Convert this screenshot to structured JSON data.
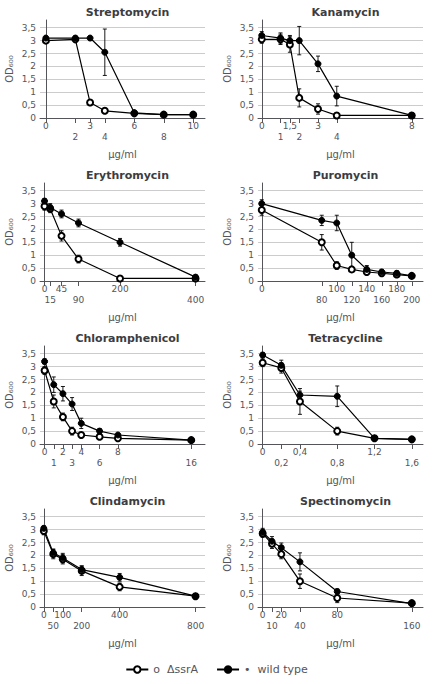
{
  "chart_data": [
    {
      "type": "line",
      "title": "Streptomycin",
      "xlabel": "μg/ml",
      "ylabel": "OD₆₀₀",
      "xlim": [
        -0.4,
        10.8
      ],
      "xticks": [
        0,
        2,
        3,
        4,
        6,
        8,
        10
      ],
      "ylim": [
        0,
        3.8
      ],
      "yticks": [
        0,
        {
          "value": 0.5,
          "label": "0,5"
        },
        1,
        {
          "value": 1.5,
          "label": "1,5"
        },
        2,
        {
          "value": 2.5,
          "label": "2,5"
        },
        3,
        {
          "value": 3.5,
          "label": "3,5"
        }
      ],
      "grid": "y",
      "legend": "bottom",
      "series": [
        {
          "name": "o  ΔssrA",
          "color": "#000000",
          "marker": "open_circle",
          "line_style": "solid",
          "x": [
            0,
            2,
            3,
            4,
            6,
            8,
            10
          ],
          "values": [
            3.0,
            3.05,
            0.6,
            0.28,
            0.18,
            0.13,
            0.13
          ],
          "errors": [
            0.08,
            0.08,
            0.1,
            0.05,
            0.04,
            0.03,
            0.03
          ]
        },
        {
          "name": "•  wild type",
          "color": "#000000",
          "marker": "circle",
          "line_style": "solid",
          "x": [
            0,
            2,
            3,
            4,
            6,
            8,
            10
          ],
          "values": [
            3.1,
            3.1,
            3.1,
            2.55,
            0.2,
            0.13,
            0.13
          ],
          "errors": [
            0.08,
            0.08,
            0.08,
            0.9,
            0.04,
            0.03,
            0.03
          ]
        }
      ]
    },
    {
      "type": "line",
      "title": "Kanamycin",
      "xlabel": "μg/ml",
      "ylabel": "OD₆₀₀",
      "xlim": [
        -0.2,
        8.6
      ],
      "xticks": [
        0,
        1,
        {
          "value": 1.5,
          "label": "1,5"
        },
        2,
        3,
        4,
        8
      ],
      "ylim": [
        0,
        3.8
      ],
      "yticks": [
        0,
        {
          "value": 0.5,
          "label": "0,5"
        },
        1,
        {
          "value": 1.5,
          "label": "1,5"
        },
        2,
        {
          "value": 2.5,
          "label": "2,5"
        },
        3,
        {
          "value": 3.5,
          "label": "3,5"
        }
      ],
      "grid": "y",
      "legend": "bottom",
      "series": [
        {
          "name": "o  ΔssrA",
          "color": "#000000",
          "marker": "open_circle",
          "line_style": "solid",
          "x": [
            0,
            1,
            1.5,
            2,
            3,
            4,
            8
          ],
          "values": [
            3.05,
            3.05,
            2.85,
            0.78,
            0.35,
            0.1,
            0.1
          ],
          "errors": [
            0.15,
            0.2,
            0.3,
            0.35,
            0.2,
            0.05,
            0.04
          ]
        },
        {
          "name": "•  wild type",
          "color": "#000000",
          "marker": "circle",
          "line_style": "solid",
          "x": [
            0,
            1,
            1.5,
            2,
            3,
            4,
            8
          ],
          "values": [
            3.2,
            3.1,
            3.0,
            3.0,
            2.1,
            0.85,
            0.1
          ],
          "errors": [
            0.15,
            0.2,
            0.2,
            0.55,
            0.3,
            0.38,
            0.04
          ]
        }
      ]
    },
    {
      "type": "line",
      "title": "Erythromycin",
      "xlabel": "μg/ml",
      "ylabel": "OD₆₀₀",
      "xlim": [
        -12,
        425
      ],
      "xticks": [
        0,
        15,
        45,
        90,
        200,
        400
      ],
      "ylim": [
        0,
        3.8
      ],
      "yticks": [
        0,
        {
          "value": 0.5,
          "label": "0,5"
        },
        1,
        {
          "value": 1.5,
          "label": "1,5"
        },
        2,
        {
          "value": 2.5,
          "label": "2,5"
        },
        3,
        {
          "value": 3.5,
          "label": "3,5"
        }
      ],
      "grid": "y",
      "legend": "bottom",
      "series": [
        {
          "name": "o  ΔssrA",
          "color": "#000000",
          "marker": "open_circle",
          "line_style": "solid",
          "x": [
            0,
            15,
            45,
            90,
            200,
            400
          ],
          "values": [
            2.9,
            2.8,
            1.75,
            0.85,
            0.1,
            0.1
          ],
          "errors": [
            0.15,
            0.15,
            0.2,
            0.15,
            0.05,
            0.04
          ]
        },
        {
          "name": "•  wild type",
          "color": "#000000",
          "marker": "circle",
          "line_style": "solid",
          "x": [
            0,
            15,
            45,
            90,
            200,
            400
          ],
          "values": [
            3.1,
            2.85,
            2.6,
            2.25,
            1.5,
            0.15
          ],
          "errors": [
            0.1,
            0.15,
            0.15,
            0.15,
            0.15,
            0.08
          ]
        }
      ]
    },
    {
      "type": "line",
      "title": "Puromycin",
      "xlabel": "μg/ml",
      "ylabel": "OD₆₀₀",
      "xlim": [
        -5,
        215
      ],
      "xticks": [
        0,
        80,
        100,
        120,
        140,
        160,
        180,
        200
      ],
      "ylim": [
        0,
        3.8
      ],
      "yticks": [
        0,
        {
          "value": 0.5,
          "label": "0,5"
        },
        1,
        {
          "value": 1.5,
          "label": "1,5"
        },
        2,
        {
          "value": 2.5,
          "label": "2,5"
        },
        3,
        {
          "value": 3.5,
          "label": "3,5"
        }
      ],
      "grid": "y",
      "legend": "bottom",
      "series": [
        {
          "name": "o  ΔssrA",
          "color": "#000000",
          "marker": "open_circle",
          "line_style": "solid",
          "x": [
            0,
            80,
            100,
            120,
            140,
            160,
            180,
            200
          ],
          "values": [
            2.75,
            1.5,
            0.6,
            0.45,
            0.35,
            0.3,
            0.25,
            0.2
          ],
          "errors": [
            0.2,
            0.3,
            0.15,
            0.1,
            0.1,
            0.1,
            0.07,
            0.07
          ]
        },
        {
          "name": "•  wild type",
          "color": "#000000",
          "marker": "circle",
          "line_style": "solid",
          "x": [
            0,
            80,
            100,
            120,
            140,
            160,
            180,
            200
          ],
          "values": [
            3.0,
            2.35,
            2.25,
            1.0,
            0.45,
            0.35,
            0.3,
            0.2
          ],
          "errors": [
            0.15,
            0.2,
            0.3,
            0.5,
            0.15,
            0.1,
            0.1,
            0.07
          ]
        }
      ]
    },
    {
      "type": "line",
      "title": "Chloramphenicol",
      "xlabel": "μg/ml",
      "ylabel": "OD₆₀₀",
      "xlim": [
        -0.5,
        17.5
      ],
      "xticks": [
        0,
        1,
        2,
        3,
        4,
        6,
        8,
        16
      ],
      "ylim": [
        0,
        3.8
      ],
      "yticks": [
        0,
        {
          "value": 0.5,
          "label": "0,5"
        },
        1,
        {
          "value": 1.5,
          "label": "1,5"
        },
        2,
        {
          "value": 2.5,
          "label": "2,5"
        },
        3,
        {
          "value": 3.5,
          "label": "3,5"
        }
      ],
      "grid": "y",
      "legend": "bottom",
      "series": [
        {
          "name": "o  ΔssrA",
          "color": "#000000",
          "marker": "open_circle",
          "line_style": "solid",
          "x": [
            0,
            1,
            2,
            3,
            4,
            6,
            8,
            16
          ],
          "values": [
            2.85,
            1.65,
            1.05,
            0.5,
            0.35,
            0.28,
            0.22,
            0.15
          ],
          "errors": [
            0.15,
            0.25,
            0.15,
            0.15,
            0.1,
            0.07,
            0.06,
            0.04
          ]
        },
        {
          "name": "•  wild type",
          "color": "#000000",
          "marker": "circle",
          "line_style": "solid",
          "x": [
            0,
            1,
            2,
            3,
            4,
            6,
            8,
            16
          ],
          "values": [
            3.2,
            2.3,
            1.95,
            1.55,
            0.8,
            0.5,
            0.35,
            0.15
          ],
          "errors": [
            0.1,
            0.3,
            0.28,
            0.25,
            0.2,
            0.1,
            0.07,
            0.04
          ]
        }
      ]
    },
    {
      "type": "line",
      "title": "Tetracycline",
      "xlabel": "μg/ml",
      "ylabel": "OD₆₀₀",
      "xlim": [
        -0.05,
        1.72
      ],
      "xticks": [
        0,
        {
          "value": 0.2,
          "label": "0,2"
        },
        {
          "value": 0.4,
          "label": "0,4"
        },
        {
          "value": 0.8,
          "label": "0,8"
        },
        {
          "value": 1.2,
          "label": "1,2"
        },
        {
          "value": 1.6,
          "label": "1,6"
        }
      ],
      "ylim": [
        0,
        3.8
      ],
      "yticks": [
        0,
        {
          "value": 0.5,
          "label": "0,5"
        },
        1,
        {
          "value": 1.5,
          "label": "1,5"
        },
        2,
        {
          "value": 2.5,
          "label": "2,5"
        },
        3,
        {
          "value": 3.5,
          "label": "3,5"
        }
      ],
      "grid": "y",
      "legend": "bottom",
      "series": [
        {
          "name": "o  ΔssrA",
          "color": "#000000",
          "marker": "open_circle",
          "line_style": "solid",
          "x": [
            0,
            0.2,
            0.4,
            0.8,
            1.2,
            1.6
          ],
          "values": [
            3.15,
            2.95,
            1.65,
            0.5,
            0.22,
            0.18
          ],
          "errors": [
            0.15,
            0.2,
            0.5,
            0.15,
            0.07,
            0.05
          ]
        },
        {
          "name": "•  wild type",
          "color": "#000000",
          "marker": "circle",
          "line_style": "solid",
          "x": [
            0,
            0.2,
            0.4,
            0.8,
            1.2,
            1.6
          ],
          "values": [
            3.45,
            3.05,
            1.9,
            1.85,
            0.22,
            0.18
          ],
          "errors": [
            0.1,
            0.2,
            0.15,
            0.4,
            0.07,
            0.05
          ]
        }
      ]
    },
    {
      "type": "line",
      "title": "Clindamycin",
      "xlabel": "μg/ml",
      "ylabel": "OD₆₀₀",
      "xlim": [
        -20,
        850
      ],
      "xticks": [
        0,
        50,
        100,
        200,
        400,
        800
      ],
      "ylim": [
        0,
        3.8
      ],
      "yticks": [
        0,
        {
          "value": 0.5,
          "label": "0,5"
        },
        1,
        {
          "value": 1.5,
          "label": "1,5"
        },
        2,
        {
          "value": 2.5,
          "label": "2,5"
        },
        3,
        {
          "value": 3.5,
          "label": "3,5"
        }
      ],
      "grid": "y",
      "legend": "bottom",
      "series": [
        {
          "name": "o  ΔssrA",
          "color": "#000000",
          "marker": "open_circle",
          "line_style": "solid",
          "x": [
            0,
            50,
            100,
            200,
            400,
            800
          ],
          "values": [
            2.95,
            2.05,
            1.85,
            1.4,
            0.78,
            0.42
          ],
          "errors": [
            0.15,
            0.18,
            0.18,
            0.18,
            0.15,
            0.1
          ]
        },
        {
          "name": "•  wild type",
          "color": "#000000",
          "marker": "circle",
          "line_style": "solid",
          "x": [
            0,
            50,
            100,
            200,
            400,
            800
          ],
          "values": [
            3.05,
            2.1,
            1.9,
            1.45,
            1.15,
            0.42
          ],
          "errors": [
            0.1,
            0.15,
            0.18,
            0.15,
            0.15,
            0.1
          ]
        }
      ]
    },
    {
      "type": "line",
      "title": "Spectinomycin",
      "xlabel": "μg/ml",
      "ylabel": "OD₆₀₀",
      "xlim": [
        -5,
        172
      ],
      "xticks": [
        0,
        10,
        20,
        40,
        80,
        160
      ],
      "ylim": [
        0,
        3.8
      ],
      "yticks": [
        0,
        {
          "value": 0.5,
          "label": "0,5"
        },
        1,
        {
          "value": 1.5,
          "label": "1,5"
        },
        2,
        {
          "value": 2.5,
          "label": "2,5"
        },
        3,
        {
          "value": 3.5,
          "label": "3,5"
        }
      ],
      "grid": "y",
      "legend": "bottom",
      "series": [
        {
          "name": "o  ΔssrA",
          "color": "#000000",
          "marker": "open_circle",
          "line_style": "solid",
          "x": [
            0,
            10,
            20,
            40,
            80,
            160
          ],
          "values": [
            2.85,
            2.45,
            2.05,
            1.0,
            0.35,
            0.15
          ],
          "errors": [
            0.15,
            0.18,
            0.18,
            0.28,
            0.18,
            0.08
          ]
        },
        {
          "name": "•  wild type",
          "color": "#000000",
          "marker": "circle",
          "line_style": "solid",
          "x": [
            0,
            10,
            20,
            40,
            80,
            160
          ],
          "values": [
            2.9,
            2.55,
            2.3,
            1.75,
            0.6,
            0.13
          ],
          "errors": [
            0.15,
            0.18,
            0.18,
            0.35,
            0.1,
            0.06
          ]
        }
      ]
    }
  ]
}
